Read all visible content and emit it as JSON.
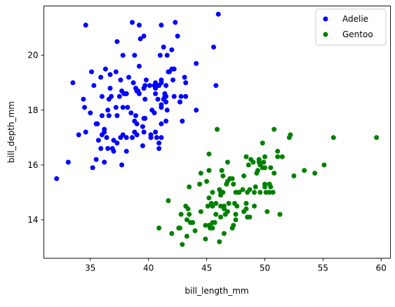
{
  "chart_data": {
    "type": "scatter",
    "xlabel": "bill_length_mm",
    "ylabel": "bill_depth_mm",
    "xlim": [
      31.0,
      60.8
    ],
    "ylim": [
      12.6,
      21.8
    ],
    "xticks": [
      35,
      40,
      45,
      50,
      55,
      60
    ],
    "yticks": [
      14,
      16,
      18,
      20
    ],
    "grid": false,
    "legend_position": "top-right",
    "series": [
      {
        "name": "Adelie",
        "color": "#0000ff",
        "points": [
          [
            32.1,
            15.5
          ],
          [
            33.1,
            16.1
          ],
          [
            33.5,
            19.0
          ],
          [
            34.0,
            17.1
          ],
          [
            34.4,
            18.4
          ],
          [
            34.5,
            18.1
          ],
          [
            34.6,
            17.2
          ],
          [
            34.6,
            21.1
          ],
          [
            35.0,
            17.9
          ],
          [
            35.1,
            19.4
          ],
          [
            35.2,
            15.9
          ],
          [
            35.3,
            18.9
          ],
          [
            35.5,
            16.2
          ],
          [
            35.5,
            17.5
          ],
          [
            35.6,
            17.5
          ],
          [
            35.7,
            16.9
          ],
          [
            35.9,
            16.6
          ],
          [
            35.9,
            19.2
          ],
          [
            36.0,
            17.1
          ],
          [
            36.0,
            17.8
          ],
          [
            36.0,
            18.5
          ],
          [
            36.2,
            16.1
          ],
          [
            36.2,
            17.2
          ],
          [
            36.2,
            17.3
          ],
          [
            36.3,
            19.5
          ],
          [
            36.4,
            17.0
          ],
          [
            36.5,
            16.6
          ],
          [
            36.5,
            18.0
          ],
          [
            36.6,
            17.8
          ],
          [
            36.6,
            18.4
          ],
          [
            36.7,
            18.8
          ],
          [
            36.7,
            19.3
          ],
          [
            36.8,
            18.5
          ],
          [
            36.9,
            16.6
          ],
          [
            37.0,
            16.5
          ],
          [
            37.0,
            16.9
          ],
          [
            37.2,
            18.1
          ],
          [
            37.2,
            19.4
          ],
          [
            37.3,
            16.8
          ],
          [
            37.3,
            17.8
          ],
          [
            37.3,
            20.5
          ],
          [
            37.5,
            18.5
          ],
          [
            37.6,
            17.0
          ],
          [
            37.6,
            19.1
          ],
          [
            37.7,
            16.0
          ],
          [
            37.7,
            18.7
          ],
          [
            37.8,
            17.1
          ],
          [
            37.8,
            18.1
          ],
          [
            37.8,
            20.0
          ],
          [
            37.9,
            18.6
          ],
          [
            38.1,
            16.5
          ],
          [
            38.1,
            17.0
          ],
          [
            38.1,
            18.6
          ],
          [
            38.2,
            18.1
          ],
          [
            38.3,
            19.2
          ],
          [
            38.5,
            17.9
          ],
          [
            38.6,
            17.0
          ],
          [
            38.6,
            21.2
          ],
          [
            38.7,
            19.0
          ],
          [
            38.8,
            17.2
          ],
          [
            38.8,
            17.6
          ],
          [
            38.8,
            20.0
          ],
          [
            38.9,
            17.8
          ],
          [
            38.9,
            18.8
          ],
          [
            39.0,
            17.1
          ],
          [
            39.0,
            17.5
          ],
          [
            39.0,
            18.7
          ],
          [
            39.1,
            18.7
          ],
          [
            39.2,
            18.6
          ],
          [
            39.2,
            19.6
          ],
          [
            39.2,
            21.1
          ],
          [
            39.3,
            20.6
          ],
          [
            39.5,
            16.7
          ],
          [
            39.5,
            17.4
          ],
          [
            39.6,
            17.2
          ],
          [
            39.6,
            17.7
          ],
          [
            39.6,
            18.8
          ],
          [
            39.6,
            20.7
          ],
          [
            39.7,
            17.7
          ],
          [
            39.7,
            18.4
          ],
          [
            39.7,
            18.9
          ],
          [
            39.8,
            19.1
          ],
          [
            40.1,
            18.9
          ],
          [
            40.2,
            17.0
          ],
          [
            40.2,
            17.1
          ],
          [
            40.3,
            18.0
          ],
          [
            40.5,
            17.9
          ],
          [
            40.5,
            18.9
          ],
          [
            40.6,
            17.2
          ],
          [
            40.6,
            18.6
          ],
          [
            40.6,
            18.8
          ],
          [
            40.6,
            19.0
          ],
          [
            40.7,
            17.0
          ],
          [
            40.8,
            18.4
          ],
          [
            40.8,
            18.9
          ],
          [
            40.9,
            16.6
          ],
          [
            40.9,
            16.8
          ],
          [
            40.9,
            18.9
          ],
          [
            41.0,
            20.0
          ],
          [
            41.1,
            17.0
          ],
          [
            41.1,
            17.5
          ],
          [
            41.1,
            18.1
          ],
          [
            41.1,
            18.2
          ],
          [
            41.1,
            19.0
          ],
          [
            41.1,
            19.1
          ],
          [
            41.1,
            21.1
          ],
          [
            41.3,
            18.4
          ],
          [
            41.3,
            20.3
          ],
          [
            41.4,
            18.5
          ],
          [
            41.4,
            18.6
          ],
          [
            41.5,
            17.6
          ],
          [
            41.5,
            18.3
          ],
          [
            41.5,
            18.5
          ],
          [
            41.5,
            18.9
          ],
          [
            41.6,
            18.0
          ],
          [
            41.6,
            20.0
          ],
          [
            41.7,
            19.4
          ],
          [
            41.8,
            19.4
          ],
          [
            42.0,
            19.5
          ],
          [
            42.0,
            20.2
          ],
          [
            42.1,
            19.1
          ],
          [
            42.2,
            18.5
          ],
          [
            42.2,
            19.5
          ],
          [
            42.3,
            21.2
          ],
          [
            42.5,
            20.7
          ],
          [
            42.7,
            18.3
          ],
          [
            42.8,
            18.5
          ],
          [
            42.9,
            17.6
          ],
          [
            43.1,
            19.2
          ],
          [
            43.2,
            18.5
          ],
          [
            43.2,
            19.0
          ],
          [
            44.1,
            18.0
          ],
          [
            44.1,
            19.7
          ],
          [
            45.6,
            20.3
          ],
          [
            45.8,
            18.9
          ],
          [
            46.0,
            21.5
          ]
        ]
      },
      {
        "name": "Gentoo",
        "color": "#008000",
        "points": [
          [
            40.9,
            13.7
          ],
          [
            41.7,
            14.7
          ],
          [
            42.0,
            13.5
          ],
          [
            42.6,
            13.7
          ],
          [
            42.7,
            13.7
          ],
          [
            42.8,
            14.2
          ],
          [
            42.9,
            13.1
          ],
          [
            43.2,
            14.5
          ],
          [
            43.3,
            13.4
          ],
          [
            43.3,
            14.0
          ],
          [
            43.4,
            14.4
          ],
          [
            43.5,
            14.2
          ],
          [
            43.5,
            15.2
          ],
          [
            43.6,
            13.9
          ],
          [
            43.8,
            13.9
          ],
          [
            44.0,
            13.6
          ],
          [
            44.4,
            15.3
          ],
          [
            44.5,
            14.3
          ],
          [
            44.5,
            15.7
          ],
          [
            44.9,
            13.3
          ],
          [
            44.9,
            13.8
          ],
          [
            45.0,
            15.4
          ],
          [
            45.1,
            14.5
          ],
          [
            45.2,
            13.8
          ],
          [
            45.2,
            14.8
          ],
          [
            45.2,
            15.8
          ],
          [
            45.2,
            16.4
          ],
          [
            45.3,
            13.7
          ],
          [
            45.3,
            13.8
          ],
          [
            45.4,
            14.6
          ],
          [
            45.5,
            13.7
          ],
          [
            45.5,
            13.9
          ],
          [
            45.5,
            14.5
          ],
          [
            45.5,
            15.0
          ],
          [
            45.7,
            13.9
          ],
          [
            45.8,
            14.2
          ],
          [
            45.8,
            14.6
          ],
          [
            45.9,
            17.3
          ],
          [
            46.1,
            13.2
          ],
          [
            46.1,
            15.1
          ],
          [
            46.2,
            14.1
          ],
          [
            46.2,
            14.5
          ],
          [
            46.2,
            14.9
          ],
          [
            46.2,
            15.0
          ],
          [
            46.3,
            15.8
          ],
          [
            46.4,
            15.0
          ],
          [
            46.4,
            15.6
          ],
          [
            46.5,
            13.5
          ],
          [
            46.5,
            14.4
          ],
          [
            46.5,
            14.5
          ],
          [
            46.6,
            14.2
          ],
          [
            46.7,
            15.3
          ],
          [
            46.8,
            14.3
          ],
          [
            46.8,
            15.4
          ],
          [
            46.8,
            16.1
          ],
          [
            46.9,
            14.6
          ],
          [
            47.0,
            15.5
          ],
          [
            47.2,
            13.7
          ],
          [
            47.2,
            15.5
          ],
          [
            47.3,
            13.8
          ],
          [
            47.3,
            15.3
          ],
          [
            47.4,
            14.6
          ],
          [
            47.5,
            14.0
          ],
          [
            47.5,
            14.2
          ],
          [
            47.5,
            15.0
          ],
          [
            47.6,
            14.5
          ],
          [
            47.7,
            15.0
          ],
          [
            47.8,
            15.0
          ],
          [
            48.1,
            15.1
          ],
          [
            48.2,
            14.3
          ],
          [
            48.2,
            15.6
          ],
          [
            48.4,
            14.4
          ],
          [
            48.4,
            14.6
          ],
          [
            48.4,
            16.3
          ],
          [
            48.5,
            14.1
          ],
          [
            48.5,
            15.0
          ],
          [
            48.6,
            16.0
          ],
          [
            48.7,
            14.1
          ],
          [
            48.7,
            15.1
          ],
          [
            48.8,
            16.2
          ],
          [
            49.0,
            16.1
          ],
          [
            49.1,
            14.5
          ],
          [
            49.1,
            15.0
          ],
          [
            49.2,
            15.2
          ],
          [
            49.3,
            15.7
          ],
          [
            49.4,
            15.8
          ],
          [
            49.5,
            16.1
          ],
          [
            49.5,
            16.2
          ],
          [
            49.6,
            15.0
          ],
          [
            49.6,
            16.0
          ],
          [
            49.8,
            15.9
          ],
          [
            49.8,
            16.8
          ],
          [
            49.9,
            16.1
          ],
          [
            50.0,
            15.2
          ],
          [
            50.0,
            15.3
          ],
          [
            50.0,
            15.9
          ],
          [
            50.0,
            16.3
          ],
          [
            50.1,
            15.0
          ],
          [
            50.2,
            14.3
          ],
          [
            50.4,
            15.0
          ],
          [
            50.4,
            15.3
          ],
          [
            50.5,
            15.2
          ],
          [
            50.5,
            15.9
          ],
          [
            50.7,
            15.0
          ],
          [
            50.8,
            15.7
          ],
          [
            50.8,
            17.3
          ],
          [
            51.1,
            16.3
          ],
          [
            51.1,
            16.5
          ],
          [
            51.3,
            14.2
          ],
          [
            51.5,
            16.3
          ],
          [
            52.1,
            17.0
          ],
          [
            52.2,
            17.1
          ],
          [
            52.5,
            15.6
          ],
          [
            53.4,
            15.8
          ],
          [
            54.3,
            15.7
          ],
          [
            55.1,
            16.0
          ],
          [
            55.9,
            17.0
          ],
          [
            59.6,
            17.0
          ]
        ]
      }
    ]
  }
}
